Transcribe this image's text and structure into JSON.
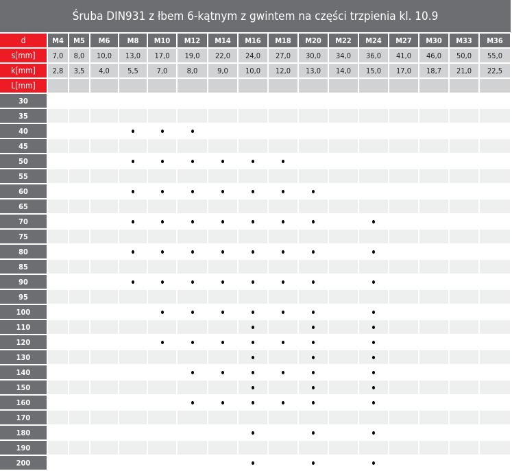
{
  "title": "Śruba DIN931 z łbem 6-kątnym z gwintem na części trzpienia kl. 10.9",
  "colors": {
    "header": "#6d6e71",
    "accent": "#ed1c24",
    "dim_row": "#d1d2d4",
    "stripe": "#eeefef"
  },
  "header_rows": [
    {
      "label": "d",
      "values": [
        "M4",
        "M5",
        "M6",
        "M8",
        "M10",
        "M12",
        "M14",
        "M16",
        "M18",
        "M20",
        "M22",
        "M24",
        "M27",
        "M30",
        "M33",
        "M36"
      ]
    },
    {
      "label": "s[mm]",
      "values": [
        "7,0",
        "8,0",
        "10,0",
        "13,0",
        "17,0",
        "19,0",
        "22,0",
        "24,0",
        "27,0",
        "30,0",
        "34,0",
        "36,0",
        "41,0",
        "46,0",
        "50,0",
        "55,0"
      ]
    },
    {
      "label": "k[mm]",
      "values": [
        "2,8",
        "3,5",
        "4,0",
        "5,5",
        "7,0",
        "8,0",
        "9,0",
        "10,0",
        "12,0",
        "13,0",
        "14,0",
        "15,0",
        "17,0",
        "18,7",
        "21,0",
        "22,5"
      ]
    },
    {
      "label": "L[mm]",
      "values": [
        "",
        "",
        "",
        "",
        "",
        "",
        "",
        "",
        "",
        "",
        "",
        "",
        "",
        "",
        "",
        ""
      ]
    }
  ],
  "lengths": [
    {
      "L": "30",
      "available": []
    },
    {
      "L": "35",
      "available": []
    },
    {
      "L": "40",
      "available": [
        "M8",
        "M10",
        "M12"
      ]
    },
    {
      "L": "45",
      "available": []
    },
    {
      "L": "50",
      "available": [
        "M8",
        "M10",
        "M12",
        "M14",
        "M16",
        "M18"
      ]
    },
    {
      "L": "55",
      "available": []
    },
    {
      "L": "60",
      "available": [
        "M8",
        "M10",
        "M12",
        "M14",
        "M16",
        "M18",
        "M20"
      ]
    },
    {
      "L": "65",
      "available": []
    },
    {
      "L": "70",
      "available": [
        "M8",
        "M10",
        "M12",
        "M14",
        "M16",
        "M18",
        "M20",
        "M24"
      ]
    },
    {
      "L": "75",
      "available": []
    },
    {
      "L": "80",
      "available": [
        "M8",
        "M10",
        "M12",
        "M14",
        "M16",
        "M18",
        "M20",
        "M24"
      ]
    },
    {
      "L": "85",
      "available": []
    },
    {
      "L": "90",
      "available": [
        "M8",
        "M10",
        "M12",
        "M14",
        "M16",
        "M18",
        "M20",
        "M24"
      ]
    },
    {
      "L": "95",
      "available": []
    },
    {
      "L": "100",
      "available": [
        "M10",
        "M12",
        "M14",
        "M16",
        "M18",
        "M20",
        "M24"
      ]
    },
    {
      "L": "110",
      "available": [
        "M16",
        "M20",
        "M24"
      ]
    },
    {
      "L": "120",
      "available": [
        "M10",
        "M12",
        "M14",
        "M16",
        "M18",
        "M20",
        "M24"
      ]
    },
    {
      "L": "130",
      "available": [
        "M16",
        "M20",
        "M24"
      ]
    },
    {
      "L": "140",
      "available": [
        "M12",
        "M14",
        "M16",
        "M18",
        "M20",
        "M24"
      ]
    },
    {
      "L": "150",
      "available": [
        "M16",
        "M20",
        "M24"
      ]
    },
    {
      "L": "160",
      "available": [
        "M12",
        "M14",
        "M16",
        "M18",
        "M20",
        "M24"
      ]
    },
    {
      "L": "170",
      "available": []
    },
    {
      "L": "180",
      "available": [
        "M16",
        "M20",
        "M24"
      ]
    },
    {
      "L": "190",
      "available": []
    },
    {
      "L": "200",
      "available": [
        "M16",
        "M20",
        "M24"
      ]
    }
  ]
}
